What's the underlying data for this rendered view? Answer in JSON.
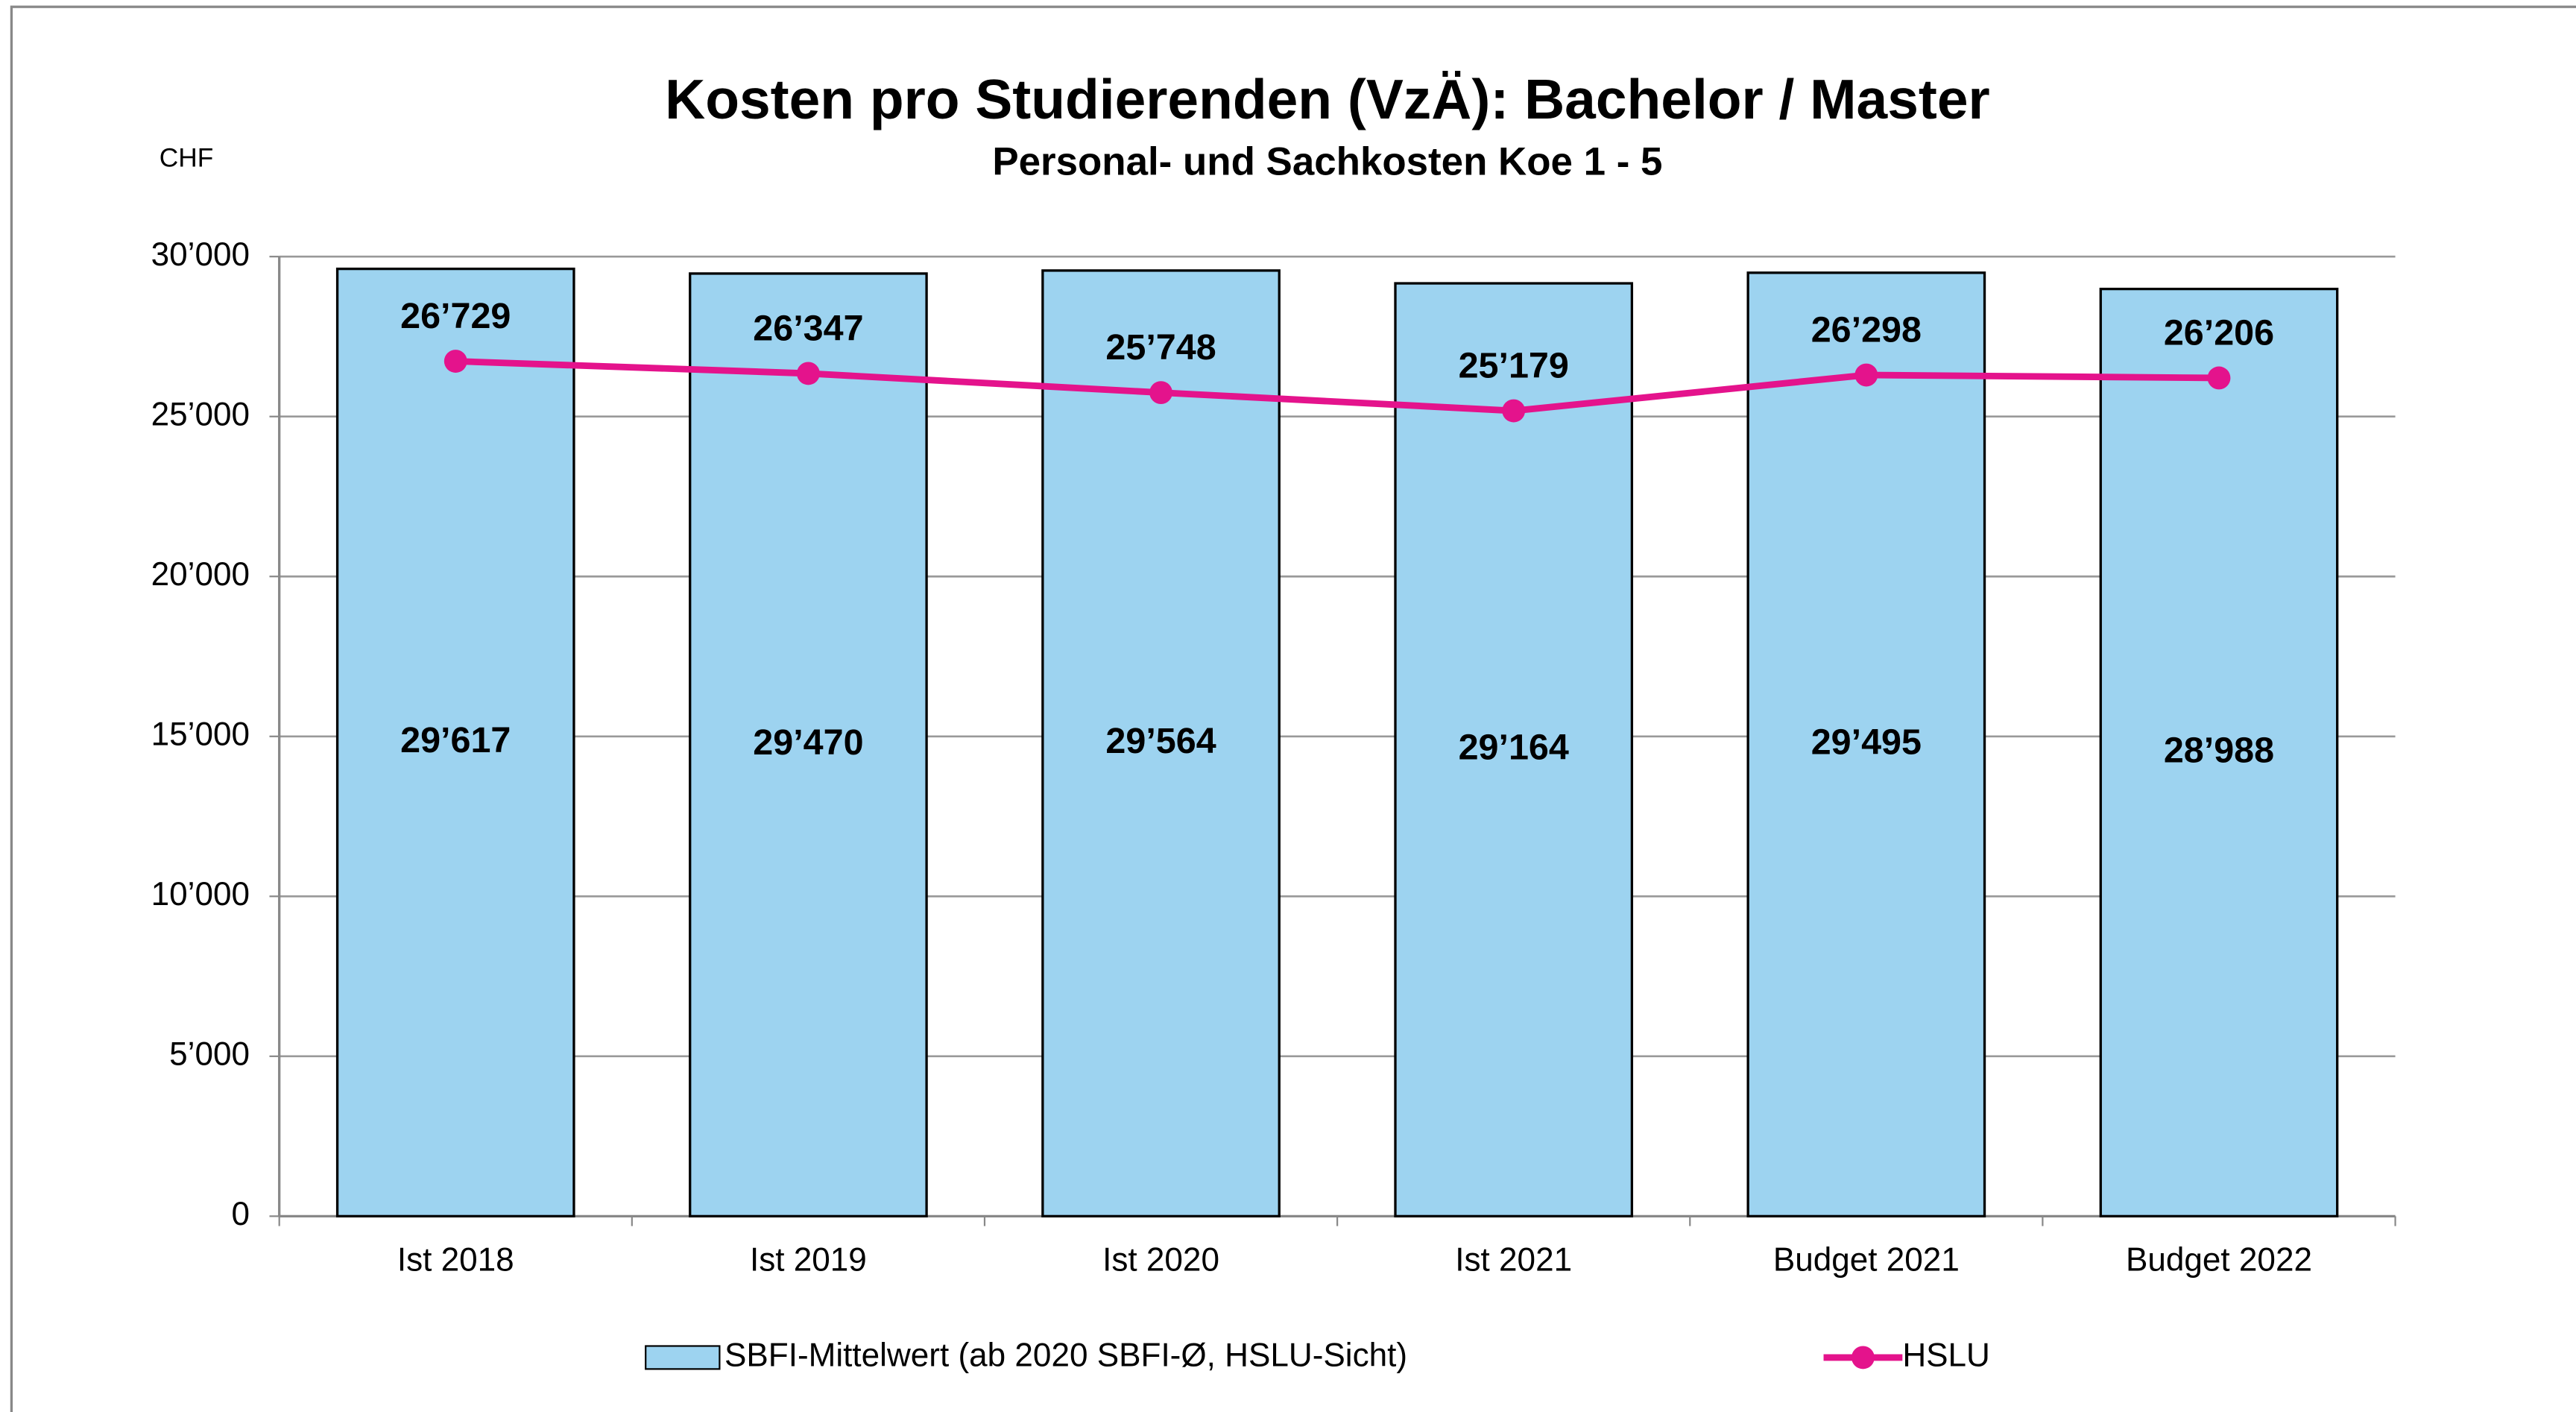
{
  "chart_data": {
    "type": "bar",
    "title": "Kosten pro Studierenden (VzÄ): Bachelor / Master",
    "subtitle": "Personal- und Sachkosten Koe 1 - 5",
    "y_axis_label": "CHF",
    "categories": [
      "Ist 2018",
      "Ist 2019",
      "Ist 2020",
      "Ist 2021",
      "Budget 2021",
      "Budget 2022"
    ],
    "series": [
      {
        "name": "SBFI-Mittelwert (ab 2020 SBFI-Ø, HSLU-Sicht)",
        "type": "bar",
        "color": "#9dd3f0",
        "values": [
          29617,
          29470,
          29564,
          29164,
          29495,
          28988
        ],
        "value_labels": [
          "29’617",
          "29’470",
          "29’564",
          "29’164",
          "29’495",
          "28’988"
        ]
      },
      {
        "name": "HSLU",
        "type": "line",
        "color": "#e4138c",
        "values": [
          26729,
          26347,
          25748,
          25179,
          26298,
          26206
        ],
        "value_labels": [
          "26’729",
          "26’347",
          "25’748",
          "25’179",
          "26’298",
          "26’206"
        ]
      }
    ],
    "ylim": [
      0,
      30000
    ],
    "yticks": [
      0,
      {
        "value": 5000,
        "label": "5’000"
      },
      {
        "value": 10000,
        "label": "10’000"
      },
      {
        "value": 15000,
        "label": "15’000"
      },
      {
        "value": 20000,
        "label": "20’000"
      },
      {
        "value": 25000,
        "label": "25’000"
      },
      {
        "value": 30000,
        "label": "30’000"
      }
    ],
    "grid": true,
    "legend": "bottom"
  }
}
